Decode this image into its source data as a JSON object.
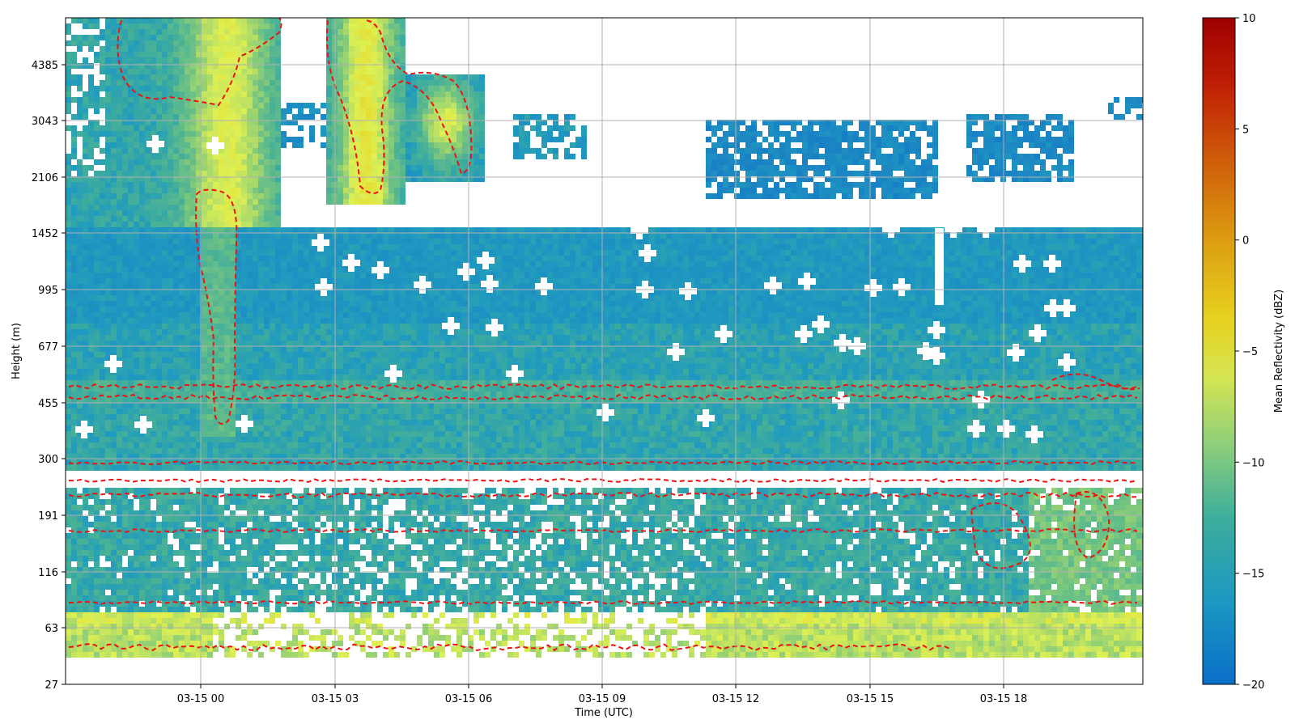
{
  "chart_data": {
    "type": "heatmap",
    "xlabel": "Time (UTC)",
    "ylabel": "Height (m)",
    "x_ticks": [
      "03-15 00",
      "03-15 03",
      "03-15 06",
      "03-15 09",
      "03-15 12",
      "03-15 15",
      "03-15 18"
    ],
    "y_ticks": [
      "27",
      "63",
      "116",
      "191",
      "300",
      "455",
      "677",
      "995",
      "1452",
      "2106",
      "3043",
      "4385"
    ],
    "xlim_hours": [
      -3.1,
      20.8
    ],
    "grid": true,
    "colorbar": {
      "label": "Mean Reflectivity (dBZ)",
      "ticks": [
        "10",
        "5",
        "0",
        "−5",
        "−10",
        "−15",
        "−20"
      ],
      "range": [
        -20,
        10
      ],
      "colormap": [
        "#0a6fc8",
        "#1b97c2",
        "#3dae9c",
        "#8ecf7a",
        "#e6e94a",
        "#e6c31a",
        "#d98a0c",
        "#c43a08",
        "#9e0000"
      ]
    },
    "contour_color": "#ee1111",
    "features": [
      "Two persistent enhanced bands near 455 m and ~250 m marked by red dashed contours",
      "Convective plumes reaching ~4385 m around 03-15 00 and 03-15 03-06 with reflectivity near -8 dBZ",
      "Near-surface band around 63 m with reflectivity near -10 dBZ",
      "Data gap between ~260 m and ~280 m across all times"
    ]
  }
}
